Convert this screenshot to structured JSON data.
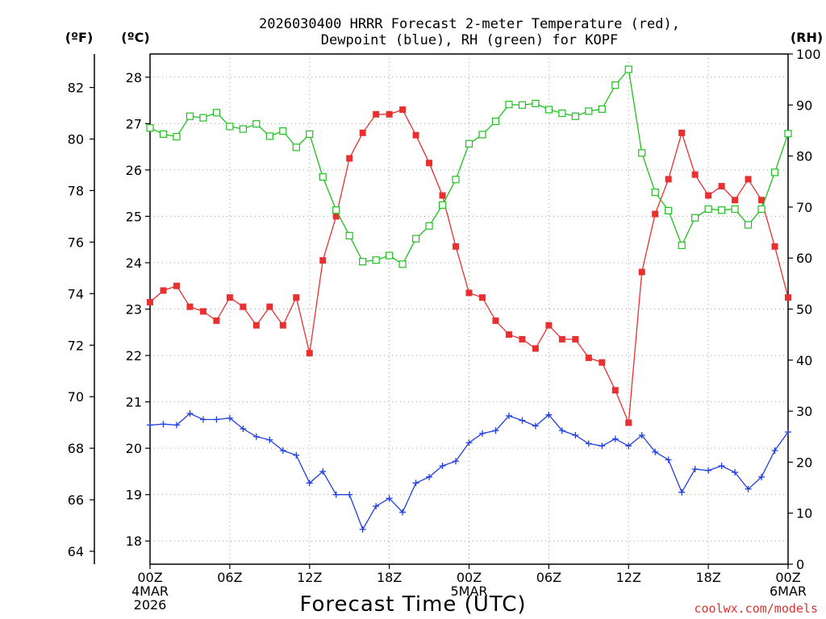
{
  "chart_data": {
    "type": "line",
    "title_line1": "2026030400 HRRR Forecast 2-meter Temperature (red),",
    "title_line2": "Dewpoint (blue), RH (green) for KOPF",
    "xlabel": "Forecast Time (UTC)",
    "credit": "coolwx.com/models",
    "units": {
      "fahrenheit": "(ºF)",
      "celsius": "(ºC)",
      "rh": "(RH)"
    },
    "x_ticks": [
      {
        "hour": 0,
        "lines": [
          "00Z",
          "4MAR",
          "2026"
        ]
      },
      {
        "hour": 6,
        "lines": [
          "06Z"
        ]
      },
      {
        "hour": 12,
        "lines": [
          "12Z"
        ]
      },
      {
        "hour": 18,
        "lines": [
          "18Z"
        ]
      },
      {
        "hour": 24,
        "lines": [
          "00Z",
          "5MAR"
        ]
      },
      {
        "hour": 30,
        "lines": [
          "06Z"
        ]
      },
      {
        "hour": 36,
        "lines": [
          "12Z"
        ]
      },
      {
        "hour": 42,
        "lines": [
          "18Z"
        ]
      },
      {
        "hour": 48,
        "lines": [
          "00Z",
          "6MAR"
        ]
      }
    ],
    "x_range": [
      0,
      48
    ],
    "celsius_range": [
      17.5,
      28.5
    ],
    "celsius_ticks": [
      "18",
      "19",
      "20",
      "21",
      "22",
      "23",
      "24",
      "25",
      "26",
      "27",
      "28"
    ],
    "fahrenheit_ticks": [
      "64",
      "66",
      "68",
      "70",
      "72",
      "74",
      "76",
      "78",
      "80",
      "82"
    ],
    "rh_range": [
      0,
      100
    ],
    "rh_ticks": [
      "0",
      "10",
      "20",
      "30",
      "40",
      "50",
      "60",
      "70",
      "80",
      "90",
      "100"
    ],
    "grid": true,
    "colors": {
      "temperature": "#e83030",
      "dewpoint": "#2040e0",
      "rh": "#20c020"
    },
    "series": [
      {
        "key": "temperature",
        "units": "°C",
        "marker": "filled-square",
        "values": [
          23.15,
          23.4,
          23.5,
          23.05,
          22.95,
          22.75,
          23.25,
          23.05,
          22.65,
          23.05,
          22.65,
          23.25,
          22.05,
          24.05,
          25.0,
          26.25,
          26.8,
          27.2,
          27.2,
          27.3,
          26.75,
          26.15,
          25.45,
          24.35,
          23.35,
          23.25,
          22.75,
          22.45,
          22.35,
          22.15,
          22.65,
          22.35,
          22.35,
          21.95,
          21.85,
          21.25,
          20.55,
          23.8,
          25.05,
          25.8,
          26.8,
          25.9,
          25.45,
          25.65,
          25.35,
          25.8,
          25.35,
          24.35,
          23.25
        ]
      },
      {
        "key": "dewpoint",
        "units": "°C",
        "marker": "plus",
        "values": [
          20.5,
          20.52,
          20.5,
          20.75,
          20.62,
          20.62,
          20.65,
          20.42,
          20.25,
          20.18,
          19.95,
          19.85,
          19.25,
          19.5,
          19.0,
          19.0,
          18.25,
          18.75,
          18.92,
          18.62,
          19.25,
          19.38,
          19.62,
          19.72,
          20.12,
          20.32,
          20.38,
          20.7,
          20.6,
          20.48,
          20.72,
          20.38,
          20.28,
          20.1,
          20.05,
          20.2,
          20.05,
          20.28,
          19.92,
          19.75,
          19.05,
          19.55,
          19.52,
          19.62,
          19.48,
          19.12,
          19.38,
          19.95,
          20.35
        ]
      },
      {
        "key": "rh",
        "units": "%",
        "marker": "open-square",
        "values": [
          85.5,
          84.3,
          83.8,
          87.8,
          87.5,
          88.5,
          85.8,
          85.3,
          86.3,
          83.9,
          84.9,
          81.7,
          84.3,
          75.9,
          69.4,
          64.4,
          59.3,
          59.6,
          60.5,
          58.8,
          63.8,
          66.3,
          70.4,
          75.4,
          82.4,
          84.2,
          86.8,
          90.1,
          90.0,
          90.3,
          89.1,
          88.4,
          87.8,
          88.8,
          89.2,
          93.9,
          97.0,
          80.6,
          72.9,
          69.3,
          62.5,
          67.9,
          69.6,
          69.4,
          69.6,
          66.5,
          69.6,
          76.8,
          84.4
        ]
      }
    ]
  }
}
